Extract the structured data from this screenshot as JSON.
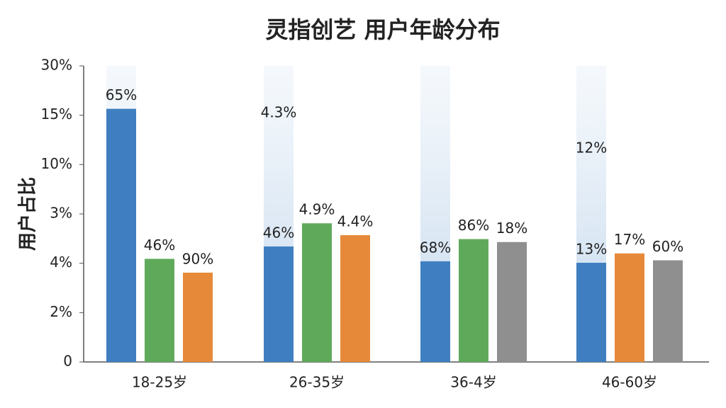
{
  "chart_data": {
    "type": "bar",
    "title": "灵指创艺 用户年龄分布",
    "y_label": "用户占比",
    "categories": [
      "18-25岁",
      "26-35岁",
      "36-4岁",
      "46-60岁"
    ],
    "series": [
      {
        "colors": [
          "#3f7fc1",
          "#3f7fc1",
          "#3f7fc1",
          "#3f7fc1"
        ],
        "values": [
          5.13,
          2.34,
          2.04,
          2.01
        ],
        "bar_texts": [
          "65%",
          "46%",
          "68%",
          "13%"
        ]
      },
      {
        "colors": [
          "#5faa5a",
          "#5faa5a",
          "#5faa5a",
          "#e68a3a"
        ],
        "values": [
          2.09,
          2.81,
          2.49,
          2.2
        ],
        "bar_texts": [
          "46%",
          "4.9%",
          "86%",
          "17%"
        ]
      },
      {
        "colors": [
          "#e68a3a",
          "#e68a3a",
          "#8f8f8f",
          "#8f8f8f"
        ],
        "values": [
          1.81,
          2.57,
          2.43,
          2.06
        ],
        "bar_texts": [
          "90%",
          "4.4%",
          "18%",
          "60%"
        ]
      }
    ],
    "ghost_texts": [
      null,
      "4.3%",
      null,
      "12%"
    ],
    "ylim": [
      0,
      6
    ],
    "yticks": [
      0,
      {
        "value": 1,
        "label": "2%"
      },
      {
        "value": 2,
        "label": "4%"
      },
      {
        "value": 3,
        "label": "3%"
      },
      {
        "value": 4,
        "label": "10%"
      },
      {
        "value": 5,
        "label": "15%"
      },
      {
        "value": 6,
        "label": "30%"
      }
    ]
  }
}
